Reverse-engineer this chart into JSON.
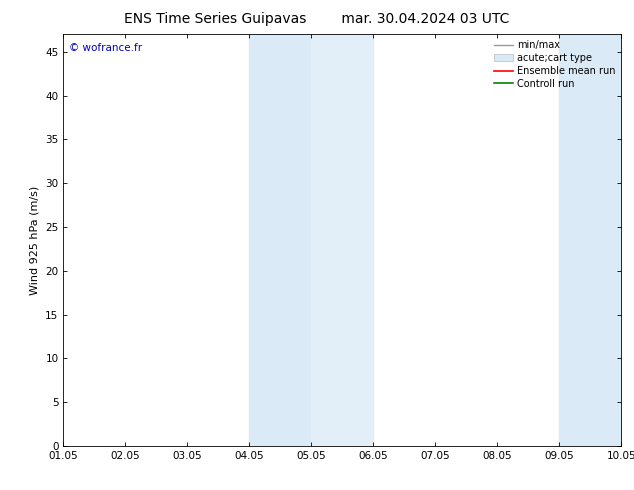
{
  "title_left": "ENS Time Series Guipavas",
  "title_right": "mar. 30.04.2024 03 UTC",
  "ylabel": "Wind 925 hPa (m/s)",
  "watermark": "© wofrance.fr",
  "xlim_dates": [
    "01.05",
    "02.05",
    "03.05",
    "04.05",
    "05.05",
    "06.05",
    "07.05",
    "08.05",
    "09.05",
    "10.05"
  ],
  "ylim": [
    0,
    47
  ],
  "yticks": [
    0,
    5,
    10,
    15,
    20,
    25,
    30,
    35,
    40,
    45
  ],
  "background_color": "#ffffff",
  "shaded_regions": [
    {
      "xstart": 3,
      "xend": 4,
      "color": "#daeaf7"
    },
    {
      "xstart": 4,
      "xend": 5,
      "color": "#e2eef8"
    },
    {
      "xstart": 8,
      "xend": 9,
      "color": "#daeaf7"
    },
    {
      "xstart": 9,
      "xend": 9.5,
      "color": "#e2eef8"
    }
  ],
  "legend_items": [
    {
      "label": "min/max",
      "color": "#999999",
      "lw": 1.0,
      "style": "minmax"
    },
    {
      "label": "acute;cart type",
      "color": "#d8eaf8",
      "lw": 8,
      "style": "fill"
    },
    {
      "label": "Ensemble mean run",
      "color": "#ff0000",
      "lw": 1.2,
      "style": "line"
    },
    {
      "label": "Controll run",
      "color": "#008800",
      "lw": 1.2,
      "style": "line"
    }
  ],
  "title_fontsize": 10,
  "tick_fontsize": 7.5,
  "ylabel_fontsize": 8,
  "watermark_color": "#0000cc",
  "legend_fontsize": 7
}
